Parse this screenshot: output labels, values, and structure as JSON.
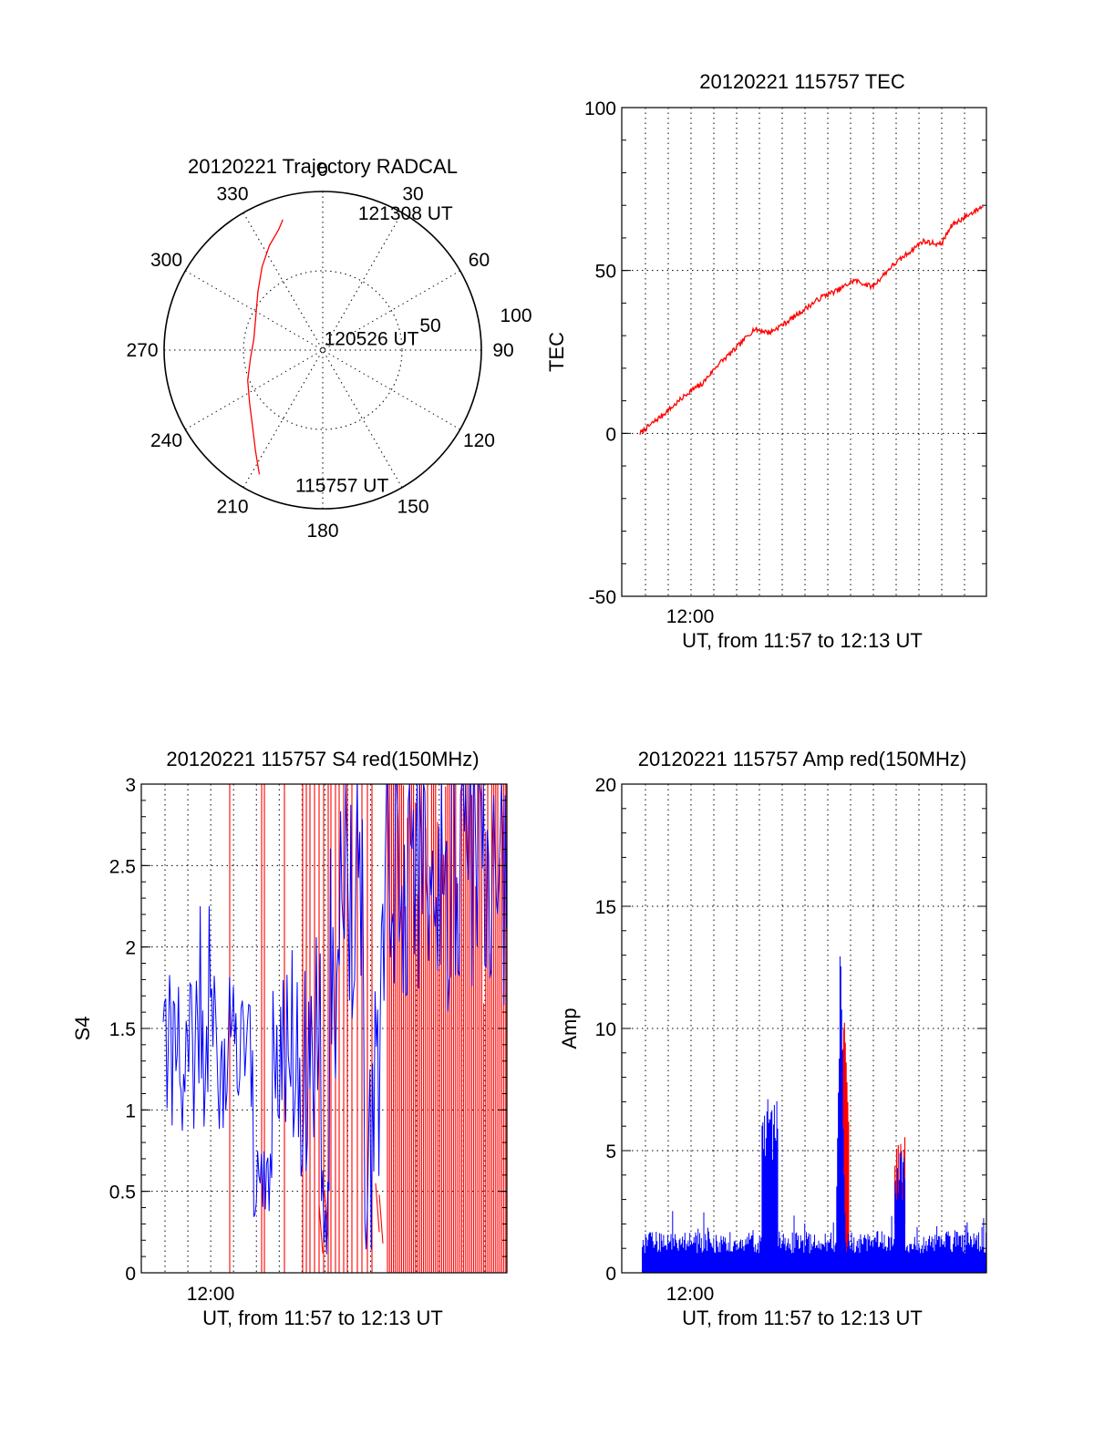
{
  "chart_data": [
    {
      "id": "trajectory",
      "type": "polar",
      "title": "20120221 Trajectory RADCAL",
      "angle_labels": [
        "0",
        "30",
        "60",
        "90",
        "120",
        "150",
        "180",
        "210",
        "240",
        "270",
        "300",
        "330"
      ],
      "radius_labels": [
        "50",
        "100"
      ],
      "rmax": 100,
      "trajectory": {
        "color": "#ff0000",
        "points": [
          {
            "az": 207,
            "r": 88
          },
          {
            "az": 214,
            "r": 76
          },
          {
            "az": 222,
            "r": 66
          },
          {
            "az": 234,
            "r": 57
          },
          {
            "az": 248,
            "r": 51
          },
          {
            "az": 263,
            "r": 46
          },
          {
            "az": 279,
            "r": 44
          },
          {
            "az": 296,
            "r": 47
          },
          {
            "az": 312,
            "r": 55
          },
          {
            "az": 324,
            "r": 65
          },
          {
            "az": 333,
            "r": 74
          },
          {
            "az": 340,
            "r": 81
          },
          {
            "az": 343,
            "r": 86
          }
        ]
      },
      "annotations": [
        {
          "text": "121308 UT",
          "az": 13,
          "r": 89
        },
        {
          "text": "120526 UT",
          "az": 350,
          "r": 8
        },
        {
          "text": "115757 UT",
          "az": 193,
          "r": 87
        }
      ]
    },
    {
      "id": "tec",
      "type": "line",
      "title": "20120221 115757 TEC",
      "ylabel": "TEC",
      "xlabel": "UT, from 11:57 to 12:13 UT",
      "x_tick_label": "12:00",
      "ylim": [
        -50,
        100
      ],
      "y_ticks": [
        -50,
        0,
        50,
        100
      ],
      "color": "#ff0000",
      "t_minutes_from_1157": [
        0.8,
        1.5,
        2.2,
        3.0,
        3.5,
        4.2,
        5.0,
        5.8,
        6.5,
        7.2,
        8.0,
        8.8,
        9.5,
        10.2,
        11.0,
        11.8,
        12.5,
        13.2,
        14.0,
        14.5,
        15.2,
        15.9
      ],
      "values": [
        0,
        4,
        8,
        13,
        15,
        21,
        26,
        32,
        31,
        34,
        38,
        42,
        44,
        47,
        45,
        51,
        55,
        59,
        58,
        64,
        67,
        70
      ]
    },
    {
      "id": "s4",
      "type": "line",
      "title": "20120221 115757 S4 red(150MHz)",
      "ylabel": "S4",
      "xlabel": "UT, from 11:57 to 12:13 UT",
      "x_tick_label": "12:00",
      "ylim": [
        0,
        3
      ],
      "y_ticks": [
        "0",
        "0.5",
        "1",
        "1.5",
        "2",
        "2.5",
        "3"
      ],
      "series_colors": [
        "#0000ff",
        "#ff0000"
      ]
    },
    {
      "id": "amp",
      "type": "line",
      "title": "20120221 115757 Amp red(150MHz)",
      "ylabel": "Amp",
      "xlabel": "UT, from 11:57 to 12:13 UT",
      "x_tick_label": "12:00",
      "ylim": [
        0,
        20
      ],
      "y_ticks": [
        0,
        5,
        10,
        15,
        20
      ],
      "series_colors": [
        "#0000ff",
        "#ff0000"
      ],
      "peaks": [
        {
          "t_minutes_from_1157": 6.6,
          "value": 7.3
        },
        {
          "t_minutes_from_1157": 9.6,
          "value": 14.7
        },
        {
          "t_minutes_from_1157": 12.2,
          "value": 5.7
        }
      ]
    }
  ]
}
